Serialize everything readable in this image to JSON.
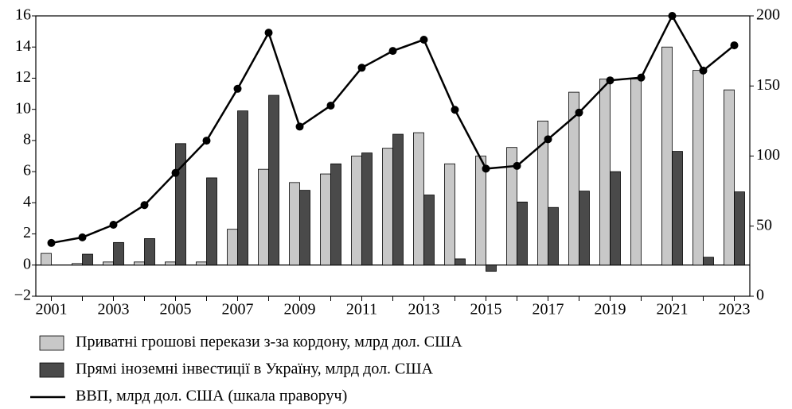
{
  "chart_data": {
    "type": "bar",
    "categories": [
      "2001",
      null,
      "2003",
      null,
      "2005",
      null,
      "2007",
      null,
      "2009",
      null,
      "2011",
      null,
      "2013",
      null,
      "2015",
      null,
      "2017",
      null,
      "2019",
      null,
      "2021",
      null,
      "2023"
    ],
    "series": [
      {
        "name": "Приватні грошові перекази з-за кордону, млрд дол. США",
        "color": "#c8c8c8",
        "type": "bar",
        "values": [
          0.75,
          0.1,
          0.2,
          0.2,
          0.2,
          0.2,
          2.3,
          6.15,
          5.3,
          5.85,
          7.0,
          7.5,
          8.5,
          6.5,
          7.0,
          7.55,
          9.25,
          11.1,
          11.95,
          11.95,
          14.0,
          12.5,
          11.25
        ]
      },
      {
        "name": "Прямі іноземні інвестиції в Україну, млрд дол. США",
        "color": "#4a4a4a",
        "type": "bar",
        "values": [
          null,
          0.7,
          1.45,
          1.7,
          7.8,
          5.6,
          9.9,
          10.9,
          4.8,
          6.5,
          7.2,
          8.4,
          4.5,
          0.4,
          -0.4,
          4.05,
          3.7,
          4.75,
          6.0,
          null,
          7.3,
          0.5,
          4.7
        ]
      },
      {
        "name": "ВВП, млрд дол. США (шкала праворуч)",
        "color": "#000000",
        "type": "line",
        "axis": "y2",
        "values": [
          38,
          42,
          51,
          65,
          88,
          111,
          148,
          188,
          121,
          136,
          163,
          175,
          183,
          133,
          91,
          93,
          112,
          131,
          154,
          156,
          200,
          161,
          179
        ]
      }
    ],
    "ylim": [
      -2,
      16
    ],
    "yticks": [
      {
        "value": -2,
        "label": "−2"
      },
      0,
      2,
      4,
      6,
      8,
      10,
      12,
      14,
      16
    ],
    "y2lim": [
      0,
      200
    ],
    "y2ticks": [
      0,
      50,
      100,
      150,
      200
    ]
  }
}
